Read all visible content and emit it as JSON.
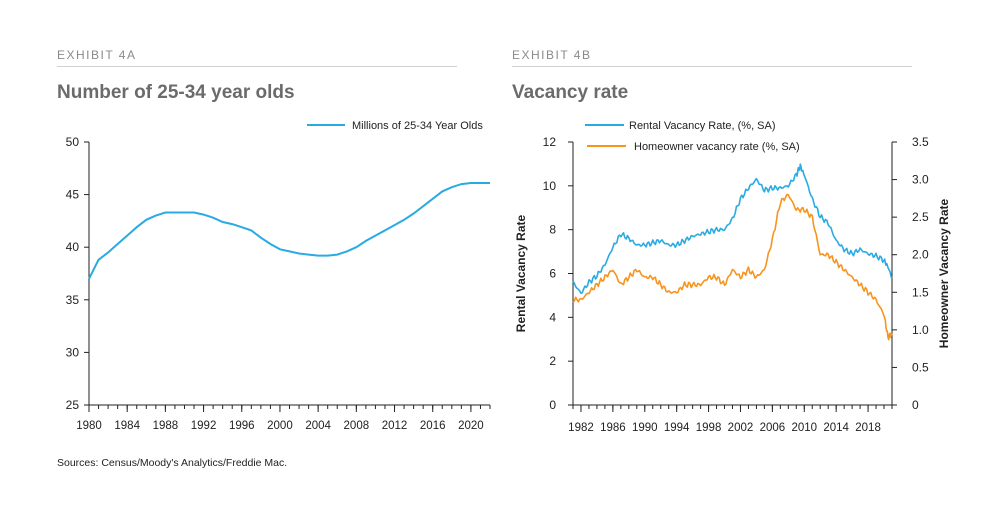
{
  "panel_a": {
    "exhibit_label": "EXHIBIT 4A",
    "title": "Number of 25-34 year olds"
  },
  "panel_b": {
    "exhibit_label": "EXHIBIT 4B",
    "title": "Vacancy rate"
  },
  "source_note": "Sources: Census/Moody's Analytics/Freddie Mac.",
  "chart_data": [
    {
      "type": "line",
      "title": "Number of 25-34 year olds",
      "xlabel": "",
      "ylabel": "",
      "xlim": [
        1980,
        2022
      ],
      "ylim": [
        25,
        50
      ],
      "x_ticks": [
        "1980",
        "1984",
        "1988",
        "1992",
        "1996",
        "2000",
        "2004",
        "2008",
        "2012",
        "2016",
        "2020"
      ],
      "y_ticks": [
        "25",
        "30",
        "35",
        "40",
        "45",
        "50"
      ],
      "grid": false,
      "legend_position": "top-right",
      "series": [
        {
          "name": "Millions of 25-34 Year Olds",
          "color": "#29abe2",
          "x": [
            1980,
            1981,
            1982,
            1983,
            1984,
            1985,
            1986,
            1987,
            1988,
            1989,
            1990,
            1991,
            1992,
            1993,
            1994,
            1995,
            1996,
            1997,
            1998,
            1999,
            2000,
            2001,
            2002,
            2003,
            2004,
            2005,
            2006,
            2007,
            2008,
            2009,
            2010,
            2011,
            2012,
            2013,
            2014,
            2015,
            2016,
            2017,
            2018,
            2019,
            2020,
            2021,
            2022
          ],
          "y": [
            37.0,
            38.8,
            39.5,
            40.3,
            41.1,
            41.9,
            42.6,
            43.0,
            43.3,
            43.3,
            43.3,
            43.3,
            43.1,
            42.8,
            42.4,
            42.2,
            41.9,
            41.6,
            40.9,
            40.3,
            39.8,
            39.6,
            39.4,
            39.3,
            39.2,
            39.2,
            39.3,
            39.6,
            40.0,
            40.6,
            41.1,
            41.6,
            42.1,
            42.6,
            43.2,
            43.9,
            44.6,
            45.3,
            45.7,
            46.0,
            46.1,
            46.1,
            46.1
          ]
        }
      ]
    },
    {
      "type": "line",
      "title": "Vacancy rate",
      "xlabel": "",
      "ylabel": "Rental Vacancy Rate",
      "y2label": "Homeowner Vacancy Rate",
      "xlim": [
        1981,
        2021
      ],
      "ylim": [
        0,
        12
      ],
      "y2lim": [
        0,
        3.5
      ],
      "x_ticks": [
        "1982",
        "1986",
        "1990",
        "1994",
        "1998",
        "2002",
        "2006",
        "2010",
        "2014",
        "2018"
      ],
      "y_ticks": [
        "0",
        "2",
        "4",
        "6",
        "8",
        "10",
        "12"
      ],
      "y2_ticks": [
        "0",
        "0.5",
        "1.0",
        "1.5",
        "2.0",
        "2.5",
        "3.0",
        "3.5"
      ],
      "grid": false,
      "legend_position": "top-left",
      "series": [
        {
          "name": "Rental Vacancy Rate, (%, SA)",
          "axis": "left",
          "color": "#29abe2",
          "x": [
            1981.0,
            1982.0,
            1983.0,
            1984.0,
            1985.0,
            1986.0,
            1987.0,
            1988.0,
            1989.0,
            1990.0,
            1991.0,
            1992.0,
            1993.0,
            1994.0,
            1995.0,
            1996.0,
            1997.0,
            1998.0,
            1999.0,
            2000.0,
            2001.0,
            2002.0,
            2003.0,
            2004.0,
            2005.0,
            2006.0,
            2007.0,
            2008.0,
            2009.0,
            2009.5,
            2010.0,
            2011.0,
            2012.0,
            2013.0,
            2014.0,
            2015.0,
            2016.0,
            2017.0,
            2018.0,
            2019.0,
            2020.0,
            2020.5,
            2021.0
          ],
          "y": [
            5.6,
            5.1,
            5.6,
            5.9,
            6.4,
            7.2,
            7.8,
            7.6,
            7.3,
            7.3,
            7.4,
            7.5,
            7.3,
            7.3,
            7.5,
            7.7,
            7.8,
            7.9,
            8.0,
            8.0,
            8.5,
            9.4,
            9.9,
            10.3,
            9.8,
            9.9,
            9.9,
            10.0,
            10.5,
            10.9,
            10.5,
            9.4,
            8.6,
            8.3,
            7.5,
            7.1,
            6.9,
            7.1,
            6.9,
            6.8,
            6.6,
            6.3,
            5.8
          ]
        },
        {
          "name": "Homeowner vacancy rate  (%, SA)",
          "axis": "right",
          "color": "#f7941d",
          "x": [
            1981.0,
            1982.0,
            1983.0,
            1984.0,
            1985.0,
            1986.0,
            1987.0,
            1988.0,
            1989.0,
            1990.0,
            1991.0,
            1992.0,
            1993.0,
            1994.0,
            1995.0,
            1996.0,
            1997.0,
            1998.0,
            1999.0,
            2000.0,
            2001.0,
            2002.0,
            2003.0,
            2004.0,
            2005.0,
            2006.0,
            2007.0,
            2008.0,
            2009.0,
            2010.0,
            2011.0,
            2012.0,
            2013.0,
            2014.0,
            2015.0,
            2016.0,
            2017.0,
            2018.0,
            2019.0,
            2020.0,
            2020.5,
            2021.0
          ],
          "y": [
            1.4,
            1.4,
            1.5,
            1.6,
            1.7,
            1.8,
            1.6,
            1.7,
            1.8,
            1.7,
            1.7,
            1.6,
            1.5,
            1.5,
            1.6,
            1.6,
            1.6,
            1.7,
            1.7,
            1.6,
            1.8,
            1.7,
            1.8,
            1.7,
            1.8,
            2.2,
            2.7,
            2.8,
            2.6,
            2.6,
            2.5,
            2.0,
            2.0,
            1.9,
            1.8,
            1.7,
            1.6,
            1.5,
            1.4,
            1.2,
            0.9,
            0.95
          ]
        }
      ]
    }
  ]
}
